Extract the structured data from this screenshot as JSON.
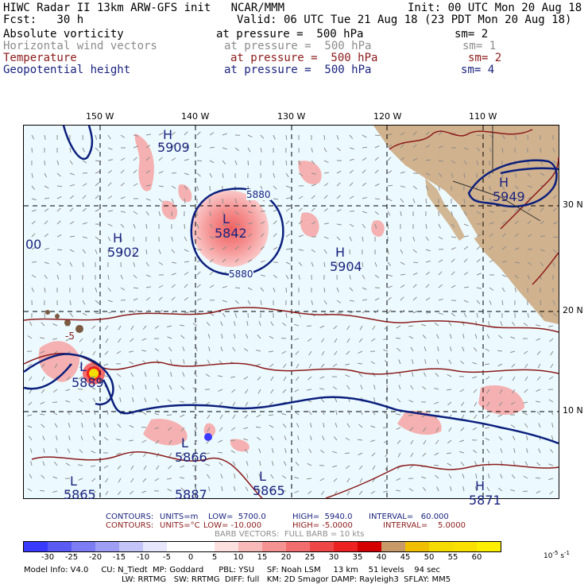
{
  "header": {
    "line1_left": "HIWC Radar II 13km ARW-GFS init   NCAR/MMM",
    "line1_right": "Init: 00 UTC Mon 20 Aug 18",
    "line2_left": "Fcst:   30 h",
    "line2_right": "Valid: 06 UTC Tue 21 Aug 18 (23 PDT Mon 20 Aug 18)",
    "fields": [
      {
        "name": "Absolute vorticity",
        "level": "at pressure =  500 hPa",
        "sm": "sm= 2",
        "color": "#000000"
      },
      {
        "name": "Horizontal wind vectors",
        "level": "at pressure =  500 hPa",
        "sm": "sm= 1",
        "color": "#8c8c8c"
      },
      {
        "name": "Temperature",
        "level": "at pressure =  500 hPa",
        "sm": "sm= 2",
        "color": "#8b1a1a"
      },
      {
        "name": "Geopotential height",
        "level": "at pressure =  500 hPa",
        "sm": "sm= 4",
        "color": "#1a237e"
      }
    ]
  },
  "map": {
    "lon_labels": [
      "150 W",
      "140 W",
      "130 W",
      "120 W",
      "110 W"
    ],
    "lat_labels": [
      "30 N",
      "20 N",
      "10 N"
    ],
    "highs_lows": [
      {
        "type": "H",
        "value": "5909"
      },
      {
        "type": "L",
        "value": "5842"
      },
      {
        "type": "H",
        "value": "5902"
      },
      {
        "type": "H",
        "value": "5904"
      },
      {
        "type": "H",
        "value": "5949"
      },
      {
        "type": "L",
        "value": "5866"
      },
      {
        "type": "L",
        "value": "5865"
      },
      {
        "type": "L",
        "value": "5865"
      },
      {
        "type": "L",
        "value": "5889"
      },
      {
        "type": "H",
        "value": "5871"
      },
      {
        "type": "",
        "value": "5887"
      },
      {
        "type": "",
        "value": "00"
      }
    ],
    "contour_labels": [
      "5880",
      "5880",
      "-5"
    ],
    "colors": {
      "ocean": "#ecfaff",
      "height_contour": "#0b1f7c",
      "temp_contour": "#8b1a1a",
      "vorticity_fill": "#f6a9a9",
      "land": "#c89a68"
    }
  },
  "footer": {
    "contours_height": {
      "label": "CONTOURS:",
      "units": "UNITS=m",
      "low": "LOW=  5700.0",
      "high": "HIGH=  5940.0",
      "interval": "INTERVAL=   60.000"
    },
    "contours_temp": {
      "label": "CONTOURS:",
      "units": "UNITS=°C",
      "low": "LOW= -10.000",
      "high": "HIGH= -5.0000",
      "interval": "INTERVAL=    5.0000"
    },
    "barb": "BARB VECTORS:  FULL BARB = 10 kts",
    "colorbar": {
      "ticks": [
        "-30",
        "-25",
        "-20",
        "-15",
        "-10",
        "-5",
        "0",
        "5",
        "10",
        "15",
        "20",
        "25",
        "30",
        "35",
        "40",
        "45",
        "50",
        "55",
        "60"
      ],
      "unit_exp": "10",
      "unit_sup": "-5",
      "unit_suffix": "s",
      "unit_suffix_sup": "-1",
      "colors": [
        "#3a3aff",
        "#5a5af5",
        "#7c7cf3",
        "#9e9ef5",
        "#c4c4f8",
        "#e6e6fc",
        "#ffffff",
        "#ffffff",
        "#fde0e0",
        "#f8b9b9",
        "#f59393",
        "#f26d6d",
        "#ef4747",
        "#ec2121",
        "#d40000",
        "#c89a68",
        "#f0c000",
        "#f5dc00",
        "#fae000",
        "#ffee00"
      ]
    },
    "model_info": {
      "line1": "Model Info: V4.0     CU: N_Tiedt  MP: Goddard      PBL: YSU     SF: Noah LSM     13 km    51 levels    94 sec",
      "line2": "LW: RRTMG   SW: RRTMG  DIFF: full   KM: 2D Smagor DAMP: Rayleigh3  SFLAY: MM5"
    }
  }
}
